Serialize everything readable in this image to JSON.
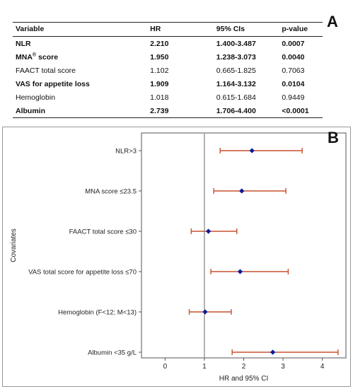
{
  "panel_a": {
    "letter": "A",
    "headers": {
      "variable": "Variable",
      "hr": "HR",
      "ci": "95% CIs",
      "p": "p-value"
    },
    "rows": [
      {
        "variable": "NLR",
        "variable_sup": "",
        "variable_tail": "",
        "hr": "2.210",
        "ci": "1.400-3.487",
        "p": "0.0007",
        "bold": true
      },
      {
        "variable": "MNA",
        "variable_sup": "®",
        "variable_tail": " score",
        "hr": "1.950",
        "ci": "1.238-3.073",
        "p": "0.0040",
        "bold": true
      },
      {
        "variable": "FAACT total score",
        "variable_sup": "",
        "variable_tail": "",
        "hr": "1.102",
        "ci": "0.665-1.825",
        "p": "0.7063",
        "bold": false
      },
      {
        "variable": "VAS for appetite loss",
        "variable_sup": "",
        "variable_tail": "",
        "hr": "1.909",
        "ci": "1.164-3.132",
        "p": "0.0104",
        "bold": true
      },
      {
        "variable": "Hemoglobin",
        "variable_sup": "",
        "variable_tail": "",
        "hr": "1.018",
        "ci": "0.615-1.684",
        "p": "0.9449",
        "bold": false
      },
      {
        "variable": "Albumin",
        "variable_sup": "",
        "variable_tail": "",
        "hr": "2.739",
        "ci": "1.706-4.400",
        "p": "<0.0001",
        "bold": true
      }
    ]
  },
  "panel_b": {
    "letter": "B"
  },
  "chart_data": {
    "type": "forest",
    "xlabel": "HR and 95% CI",
    "ylabel": "Covariates",
    "xlim": [
      -0.6,
      4.6
    ],
    "xticks": [
      0,
      1,
      2,
      3,
      4
    ],
    "reference_line": 1,
    "grid": false,
    "colors": {
      "point": "#0b1a9c",
      "ci": "#c8502e",
      "reference": "#9a9a9a"
    },
    "categories": [
      "NLR>3",
      "MNA score ≤23.5",
      "FAACT total score ≤30",
      "VAS total score for appetite loss ≤70",
      "Hemoglobin (F<12; M<13)",
      "Albumin <35 g/L"
    ],
    "hr": [
      2.21,
      1.95,
      1.102,
      1.909,
      1.018,
      2.739
    ],
    "lower": [
      1.4,
      1.238,
      0.665,
      1.164,
      0.615,
      1.706
    ],
    "upper": [
      3.487,
      3.073,
      1.825,
      3.132,
      1.684,
      4.4
    ]
  }
}
